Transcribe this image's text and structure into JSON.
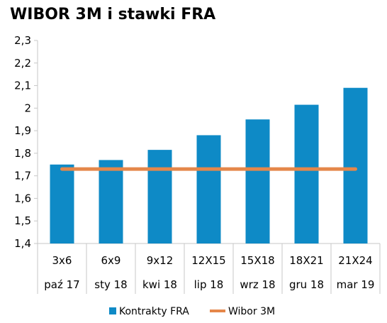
{
  "chart_data": {
    "type": "bar",
    "title": "WIBOR 3M i stawki FRA",
    "categories": [
      {
        "top": "3x6",
        "bottom": "paź 17"
      },
      {
        "top": "6x9",
        "bottom": "sty 18"
      },
      {
        "top": "9x12",
        "bottom": "kwi 18"
      },
      {
        "top": "12X15",
        "bottom": "lip 18"
      },
      {
        "top": "15X18",
        "bottom": "wrz 18"
      },
      {
        "top": "18X21",
        "bottom": "gru 18"
      },
      {
        "top": "21X24",
        "bottom": "mar 19"
      }
    ],
    "series": [
      {
        "name": "Kontrakty FRA",
        "kind": "bar",
        "color": "#0E8AC6",
        "values": [
          1.75,
          1.77,
          1.815,
          1.88,
          1.95,
          2.015,
          2.09
        ]
      },
      {
        "name": "Wibor 3M",
        "kind": "line",
        "color": "#E5874A",
        "values": [
          1.73,
          1.73,
          1.73,
          1.73,
          1.73,
          1.73,
          1.73
        ]
      }
    ],
    "ylim": [
      1.4,
      2.3
    ],
    "yticks": [
      "1,4",
      "1,5",
      "1,6",
      "1,7",
      "1,8",
      "1,9",
      "2",
      "2,1",
      "2,2",
      "2,3"
    ],
    "grid": false,
    "legend_position": "bottom"
  }
}
